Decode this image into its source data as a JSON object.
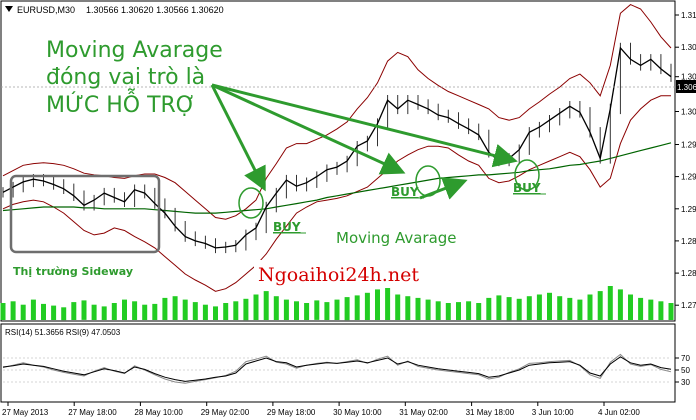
{
  "header": {
    "symbol": "EURUSD,M30",
    "ohlc": "1.30566 1.30620 1.30566 1.30620"
  },
  "colors": {
    "price_line": "#000000",
    "band": "#8b0000",
    "ma": "#006400",
    "volume": "#22cc22",
    "annotation": "#2e9b2e",
    "watermark": "#d40000",
    "rsi14": "#000000",
    "rsi9": "#8a8a8a",
    "sideway_box": "#6e6e6e"
  },
  "annotations": {
    "title_line1": "Moving Avarage",
    "title_line2": "đóng vai trò là",
    "title_line3": "MỨC HỖ TRỢ",
    "buy1": "BUY",
    "buy2": "BUY",
    "buy3": "BUY",
    "ma_label": "Moving Avarage",
    "sideway_label": "Thị trường Sideway",
    "watermark": "Ngoaihoi24h.net"
  },
  "rsi_panel": {
    "label": "RSI(14) 51.3656  RSI(9) 47.0503"
  },
  "chart_data": {
    "type": "line",
    "title": "EURUSD,M30",
    "ylim": [
      1.2782,
      1.3148
    ],
    "y_ticks": [
      "1.31330",
      "1.30960",
      "1.30620",
      "1.30220",
      "1.29840",
      "1.29470",
      "1.29100",
      "1.28730",
      "1.28360",
      "1.27990"
    ],
    "y_tick_values": [
      1.3133,
      1.3096,
      1.3062,
      1.3022,
      1.2984,
      1.2947,
      1.291,
      1.2873,
      1.2836,
      1.2799
    ],
    "current_price": "1.30620",
    "x_ticks": [
      "27 May 2013",
      "27 May 18:00",
      "28 May 10:00",
      "29 May 02:00",
      "29 May 18:00",
      "30 May 10:00",
      "31 May 02:00",
      "31 May 18:00",
      "3 Jun 10:00",
      "4 Jun 02:00"
    ],
    "series": [
      {
        "name": "Close",
        "values": [
          1.2929,
          1.2935,
          1.2941,
          1.2944,
          1.2942,
          1.2938,
          1.2933,
          1.2925,
          1.2914,
          1.292,
          1.2928,
          1.2923,
          1.2918,
          1.2932,
          1.2928,
          1.2916,
          1.2905,
          1.289,
          1.2878,
          1.2873,
          1.287,
          1.2865,
          1.2866,
          1.2868,
          1.288,
          1.2888,
          1.2912,
          1.2928,
          1.2943,
          1.2936,
          1.294,
          1.2947,
          1.2955,
          1.2958,
          1.2965,
          1.2982,
          1.2988,
          1.3008,
          1.3035,
          1.3025,
          1.3035,
          1.303,
          1.3025,
          1.3018,
          1.3015,
          1.3008,
          1.3002,
          1.2995,
          1.2975,
          1.2965,
          1.2968,
          1.2978,
          1.2998,
          1.3004,
          1.3012,
          1.302,
          1.3028,
          1.3021,
          1.2998,
          1.2968,
          1.3025,
          1.3095,
          1.3082,
          1.3075,
          1.3082,
          1.3071,
          1.3062
        ]
      },
      {
        "name": "Moving Avarage",
        "values": [
          1.2908,
          1.2909,
          1.291,
          1.2911,
          1.2912,
          1.2912,
          1.2912,
          1.2912,
          1.2911,
          1.2911,
          1.291,
          1.291,
          1.291,
          1.291,
          1.291,
          1.2909,
          1.2908,
          1.2907,
          1.2906,
          1.2905,
          1.2905,
          1.2905,
          1.2906,
          1.2907,
          1.2908,
          1.2909,
          1.291,
          1.2912,
          1.2914,
          1.2916,
          1.2918,
          1.292,
          1.2923,
          1.2925,
          1.2927,
          1.2929,
          1.2931,
          1.2933,
          1.2935,
          1.2937,
          1.2939,
          1.2941,
          1.2943,
          1.2945,
          1.2946,
          1.2947,
          1.2948,
          1.2949,
          1.2949,
          1.295,
          1.2951,
          1.2952,
          1.2954,
          1.2955,
          1.2956,
          1.2958,
          1.296,
          1.2961,
          1.2963,
          1.2965,
          1.2968,
          1.2971,
          1.2974,
          1.2977,
          1.298,
          1.2983,
          1.2986
        ]
      },
      {
        "name": "Upper band",
        "values": [
          1.2948,
          1.2954,
          1.296,
          1.2962,
          1.2963,
          1.2962,
          1.296,
          1.2956,
          1.2951,
          1.2949,
          1.2948,
          1.2946,
          1.2945,
          1.2948,
          1.295,
          1.295,
          1.2946,
          1.294,
          1.293,
          1.292,
          1.291,
          1.29,
          1.2898,
          1.2902,
          1.291,
          1.292,
          1.2945,
          1.2962,
          1.298,
          1.2985,
          1.2985,
          1.299,
          1.2995,
          1.3002,
          1.301,
          1.3025,
          1.3038,
          1.3055,
          1.308,
          1.309,
          1.3085,
          1.307,
          1.306,
          1.3052,
          1.3045,
          1.304,
          1.3035,
          1.303,
          1.3025,
          1.3015,
          1.3012,
          1.3015,
          1.3025,
          1.3033,
          1.3042,
          1.305,
          1.306,
          1.3065,
          1.3055,
          1.304,
          1.3075,
          1.3135,
          1.3145,
          1.314,
          1.3125,
          1.3108,
          1.3095
        ]
      },
      {
        "name": "Lower band",
        "values": [
          1.291,
          1.2915,
          1.2918,
          1.292,
          1.2918,
          1.2912,
          1.2905,
          1.2895,
          1.2885,
          1.288,
          1.2882,
          1.2888,
          1.2885,
          1.2878,
          1.2872,
          1.2865,
          1.2855,
          1.2845,
          1.2835,
          1.2828,
          1.2822,
          1.2815,
          1.2818,
          1.2825,
          1.2835,
          1.2845,
          1.2858,
          1.2875,
          1.289,
          1.2905,
          1.2912,
          1.2918,
          1.292,
          1.2922,
          1.2925,
          1.293,
          1.2935,
          1.2945,
          1.2955,
          1.2965,
          1.2972,
          1.2978,
          1.2982,
          1.2982,
          1.298,
          1.2972,
          1.2965,
          1.296,
          1.2945,
          1.294,
          1.2942,
          1.2948,
          1.2955,
          1.296,
          1.2965,
          1.297,
          1.2975,
          1.297,
          1.2955,
          1.2935,
          1.2945,
          1.2985,
          1.3012,
          1.3025,
          1.3035,
          1.304,
          1.304
        ]
      },
      {
        "name": "RSI(14)",
        "values": [
          55,
          57,
          60,
          58,
          56,
          52,
          48,
          45,
          42,
          47,
          52,
          49,
          45,
          55,
          51,
          44,
          38,
          34,
          31,
          33,
          35,
          38,
          40,
          45,
          60,
          65,
          70,
          64,
          62,
          55,
          58,
          60,
          62,
          61,
          63,
          65,
          62,
          66,
          70,
          60,
          64,
          58,
          55,
          52,
          50,
          48,
          46,
          44,
          38,
          40,
          45,
          50,
          58,
          60,
          62,
          63,
          64,
          58,
          45,
          40,
          60,
          72,
          62,
          58,
          60,
          54,
          51.3656
        ]
      },
      {
        "name": "RSI(9)",
        "values": [
          54,
          58,
          62,
          58,
          55,
          50,
          46,
          43,
          40,
          48,
          54,
          48,
          44,
          57,
          50,
          42,
          35,
          30,
          28,
          31,
          34,
          37,
          41,
          48,
          64,
          68,
          73,
          63,
          60,
          53,
          58,
          61,
          63,
          61,
          64,
          67,
          61,
          68,
          73,
          58,
          65,
          56,
          53,
          50,
          48,
          46,
          44,
          42,
          35,
          38,
          46,
          52,
          61,
          62,
          64,
          65,
          66,
          57,
          42,
          36,
          63,
          76,
          60,
          56,
          59,
          51,
          47.0503
        ]
      }
    ],
    "rsi_ylim": [
      0,
      100
    ],
    "rsi_ticks": [
      70,
      50,
      30
    ],
    "rsi_tick_labels": [
      "70",
      "50",
      "30"
    ],
    "volume": [
      20,
      22,
      18,
      24,
      19,
      17,
      15,
      21,
      23,
      18,
      16,
      20,
      24,
      22,
      18,
      19,
      26,
      28,
      24,
      21,
      18,
      16,
      20,
      22,
      25,
      30,
      34,
      28,
      24,
      22,
      20,
      23,
      21,
      24,
      27,
      29,
      32,
      36,
      40,
      30,
      28,
      26,
      24,
      22,
      20,
      21,
      22,
      20,
      26,
      29,
      27,
      25,
      28,
      30,
      32,
      28,
      26,
      24,
      30,
      34,
      40,
      36,
      30,
      26,
      24,
      22,
      20
    ]
  }
}
